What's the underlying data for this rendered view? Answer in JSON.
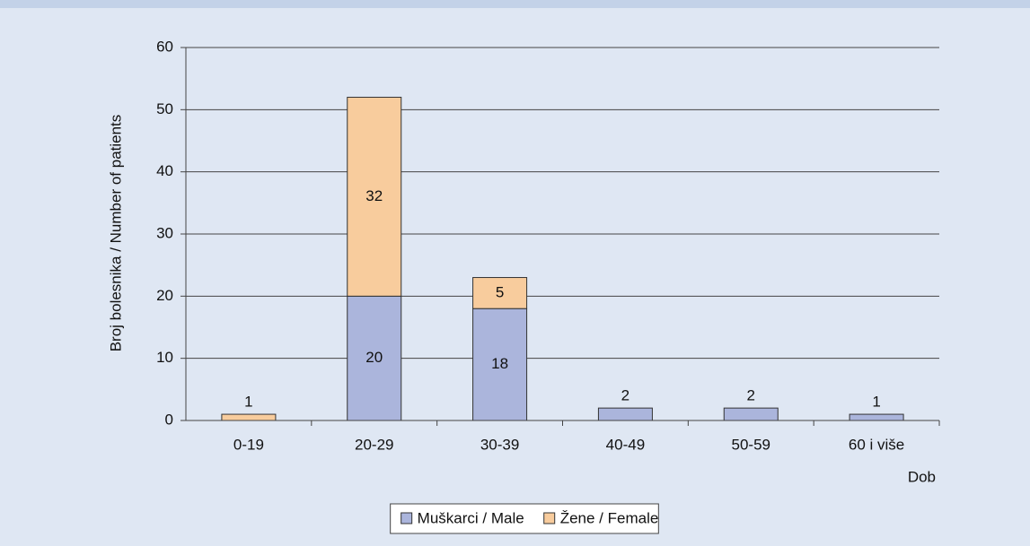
{
  "chart_data": {
    "type": "stacked_bar",
    "categories": [
      "0-19",
      "20-29",
      "30-39",
      "40-49",
      "50-59",
      "60 i više"
    ],
    "series": [
      {
        "name": "Muškarci / Male",
        "color": "#abb5dc",
        "values": [
          0,
          20,
          18,
          2,
          2,
          1
        ]
      },
      {
        "name": "Žene / Female",
        "color": "#f8cc9d",
        "values": [
          1,
          32,
          5,
          0,
          0,
          0
        ]
      }
    ],
    "ylabel": "Broj bolesnika / Number of patients",
    "xlabel": "Dob",
    "ylim": [
      0,
      60
    ],
    "yticks": [
      0,
      10,
      20,
      30,
      40,
      50,
      60
    ],
    "grid": true,
    "legend": "bottom"
  }
}
